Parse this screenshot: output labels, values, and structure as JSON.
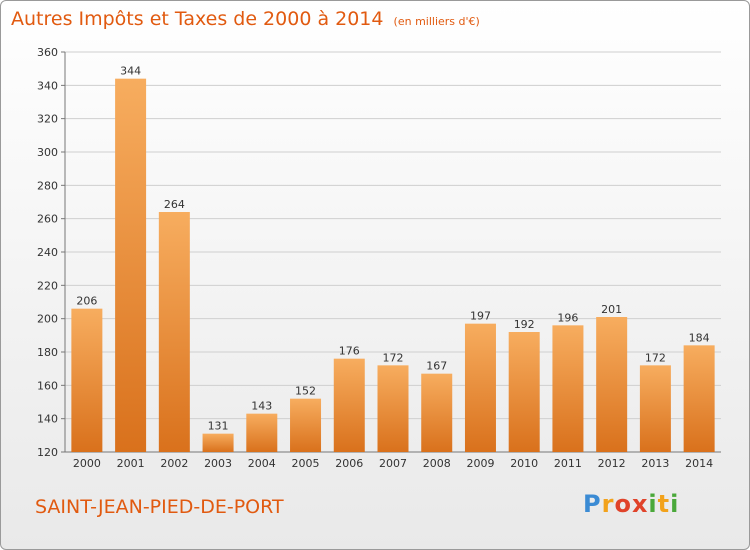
{
  "chart_data": {
    "type": "bar",
    "title": "Autres Impôts et Taxes de 2000 à 2014",
    "subtitle": "(en milliers d'€)",
    "categories": [
      "2000",
      "2001",
      "2002",
      "2003",
      "2004",
      "2005",
      "2006",
      "2007",
      "2008",
      "2009",
      "2010",
      "2011",
      "2012",
      "2013",
      "2014"
    ],
    "values": [
      206,
      344,
      264,
      131,
      143,
      152,
      176,
      172,
      167,
      197,
      192,
      196,
      201,
      172,
      184
    ],
    "ylim": [
      120,
      360
    ],
    "yticks": [
      120,
      140,
      160,
      180,
      200,
      220,
      240,
      260,
      280,
      300,
      320,
      340,
      360
    ],
    "grid": true,
    "bar_color_light": "#f7ad5f",
    "bar_color_dark": "#d9711c"
  },
  "footer": {
    "commune": "SAINT-JEAN-PIED-DE-PORT",
    "logo_letters": [
      "P",
      "r",
      "o",
      "x",
      "i",
      "t",
      "i"
    ],
    "logo_colors": [
      "#3b8bd4",
      "#f2a21b",
      "#e0432a",
      "#e0432a",
      "#4aa83a",
      "#f2a21b",
      "#4aa83a"
    ]
  },
  "colors": {
    "accent": "#e15a10"
  }
}
